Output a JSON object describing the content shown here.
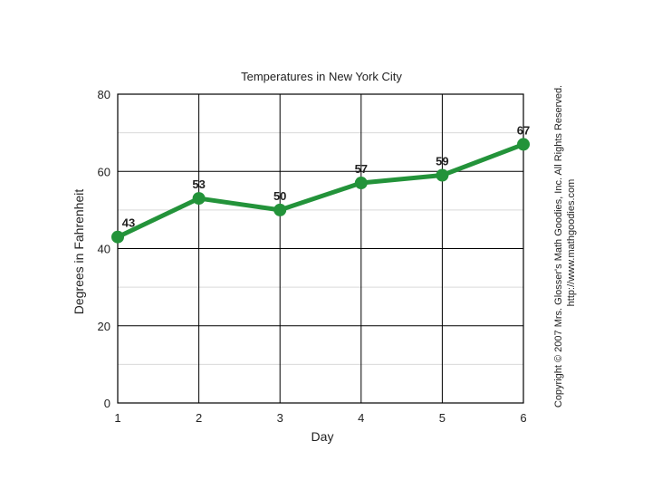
{
  "chart_data": {
    "type": "line",
    "title": "Temperatures in New York City",
    "xlabel": "Day",
    "ylabel": "Degrees in Fahrenheit",
    "x": [
      1,
      2,
      3,
      4,
      5,
      6
    ],
    "x_ticks": [
      "1",
      "2",
      "3",
      "4",
      "5",
      "6"
    ],
    "y_ticks": [
      "0",
      "20",
      "40",
      "60",
      "80"
    ],
    "xlim": [
      1,
      6
    ],
    "ylim": [
      0,
      80
    ],
    "grid": true,
    "series": [
      {
        "values": [
          43,
          53,
          50,
          57,
          59,
          67
        ],
        "labels": [
          "43",
          "53",
          "50",
          "57",
          "59",
          "67"
        ],
        "color": "#23933a"
      }
    ]
  },
  "copyright": {
    "line1": "Copyright © 2007 Mrs. Glosser's Math Goodies, Inc. All Rights Reserved.",
    "line2": "http://www.mathgoodies.com"
  }
}
